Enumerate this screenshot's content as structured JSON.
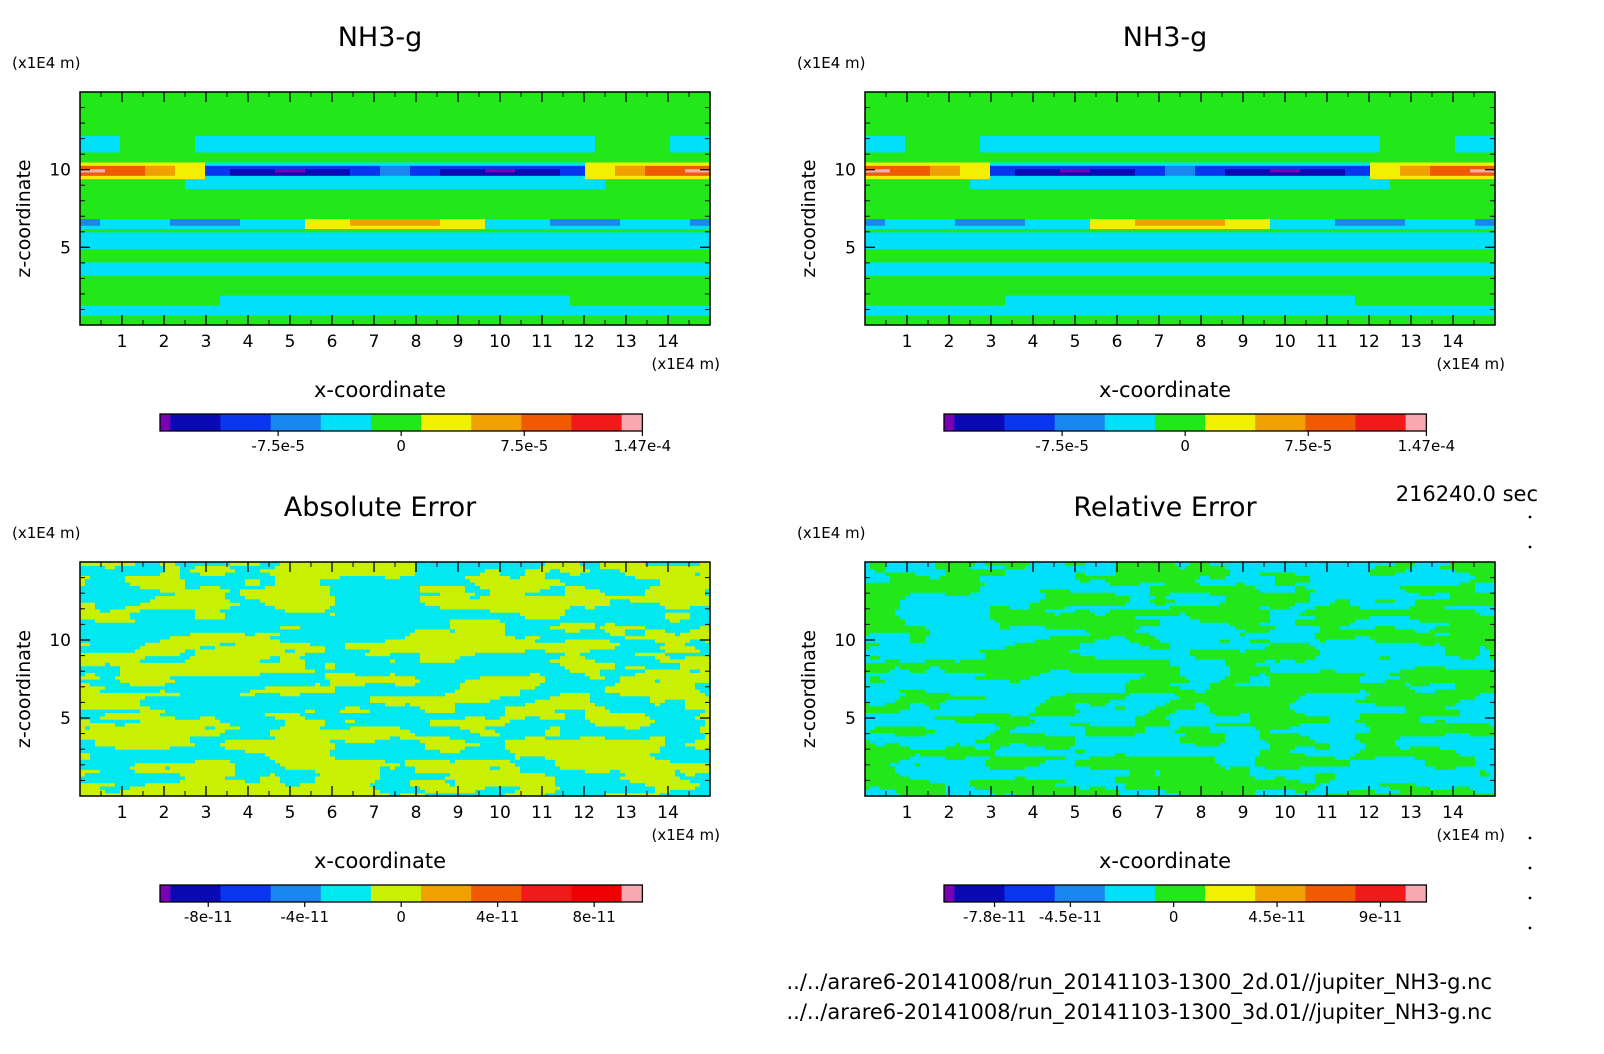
{
  "chart_data": [
    {
      "type": "heatmap",
      "title": "NH3-g",
      "xlabel": "x-coordinate",
      "ylabel": "z-coordinate",
      "x_unit": "(x1E4 m)",
      "y_unit": "(x1E4 m)",
      "xticks": [
        "1",
        "2",
        "3",
        "4",
        "5",
        "6",
        "7",
        "8",
        "9",
        "10",
        "11",
        "12",
        "13",
        "14"
      ],
      "yticks": [
        "5",
        "10"
      ],
      "xlim": [
        0,
        15
      ],
      "ylim": [
        0,
        15
      ],
      "colorbar": {
        "colors": [
          "#7a00b8",
          "#0a0ab4",
          "#0a36f0",
          "#1a86f0",
          "#00e0f8",
          "#22e81a",
          "#f0f000",
          "#f0a000",
          "#f05a00",
          "#f01a1a",
          "#f8a8b0"
        ],
        "tick_labels": [
          "-7.5e-5",
          "0",
          "7.5e-5",
          "1.47e-4"
        ],
        "tick_values": [
          -7.5e-05,
          0,
          7.5e-05,
          0.000147
        ],
        "range": [
          -0.000147,
          0.000147
        ]
      },
      "field": "banded",
      "source": "left"
    },
    {
      "type": "heatmap",
      "title": "NH3-g",
      "xlabel": "x-coordinate",
      "ylabel": "z-coordinate",
      "x_unit": "(x1E4 m)",
      "y_unit": "(x1E4 m)",
      "xticks": [
        "1",
        "2",
        "3",
        "4",
        "5",
        "6",
        "7",
        "8",
        "9",
        "10",
        "11",
        "12",
        "13",
        "14"
      ],
      "yticks": [
        "5",
        "10"
      ],
      "xlim": [
        0,
        15
      ],
      "ylim": [
        0,
        15
      ],
      "colorbar": {
        "colors": [
          "#7a00b8",
          "#0a0ab4",
          "#0a36f0",
          "#1a86f0",
          "#00e0f8",
          "#22e81a",
          "#f0f000",
          "#f0a000",
          "#f05a00",
          "#f01a1a",
          "#f8a8b0"
        ],
        "tick_labels": [
          "-7.5e-5",
          "0",
          "7.5e-5",
          "1.47e-4"
        ],
        "tick_values": [
          -7.5e-05,
          0,
          7.5e-05,
          0.000147
        ],
        "range": [
          -0.000147,
          0.000147
        ]
      },
      "field": "banded",
      "source": "right"
    },
    {
      "type": "heatmap",
      "title": "Absolute Error",
      "xlabel": "x-coordinate",
      "ylabel": "z-coordinate",
      "x_unit": "(x1E4 m)",
      "y_unit": "(x1E4 m)",
      "xticks": [
        "1",
        "2",
        "3",
        "4",
        "5",
        "6",
        "7",
        "8",
        "9",
        "10",
        "11",
        "12",
        "13",
        "14"
      ],
      "yticks": [
        "5",
        "10"
      ],
      "xlim": [
        0,
        15
      ],
      "ylim": [
        0,
        15
      ],
      "colorbar": {
        "colors": [
          "#7a00b8",
          "#0a0ab4",
          "#0a36f0",
          "#1a86f0",
          "#00e8f0",
          "#c8f000",
          "#f0a000",
          "#f05a00",
          "#f01a1a",
          "#f00000",
          "#f8a8b0"
        ],
        "tick_labels": [
          "-8e-11",
          "-4e-11",
          "0",
          "4e-11",
          "8e-11"
        ],
        "tick_values": [
          -8e-11,
          -4e-11,
          0,
          4e-11,
          8e-11
        ],
        "range": [
          -1e-10,
          1e-10
        ]
      },
      "field": "noise-two",
      "colors_present": [
        "#00e8f0",
        "#c8f000"
      ]
    },
    {
      "type": "heatmap",
      "title": "Relative Error",
      "xlabel": "x-coordinate",
      "ylabel": "z-coordinate",
      "x_unit": "(x1E4 m)",
      "y_unit": "(x1E4 m)",
      "xticks": [
        "1",
        "2",
        "3",
        "4",
        "5",
        "6",
        "7",
        "8",
        "9",
        "10",
        "11",
        "12",
        "13",
        "14"
      ],
      "yticks": [
        "5",
        "10"
      ],
      "xlim": [
        0,
        15
      ],
      "ylim": [
        0,
        15
      ],
      "colorbar": {
        "colors": [
          "#7a00b8",
          "#0a0ab4",
          "#0a36f0",
          "#1a86f0",
          "#00e0f8",
          "#22e81a",
          "#f0f000",
          "#f0a000",
          "#f05a00",
          "#f01a1a",
          "#f8a8b0"
        ],
        "tick_labels": [
          "-7.8e-11",
          "-4.5e-11",
          "0",
          "4.5e-11",
          "9e-11"
        ],
        "tick_values": [
          -7.8e-11,
          -4.5e-11,
          0,
          4.5e-11,
          9e-11
        ],
        "range": [
          -1e-10,
          1.1e-10
        ]
      },
      "field": "noise-two",
      "colors_present": [
        "#00e0f8",
        "#22e81a"
      ]
    }
  ],
  "time_label": "216240.0 sec",
  "footer_lines": [
    "../../arare6-20141008/run_20141103-1300_2d.01//jupiter_NH3-g.nc",
    "../../arare6-20141008/run_20141103-1300_3d.01//jupiter_NH3-g.nc"
  ]
}
